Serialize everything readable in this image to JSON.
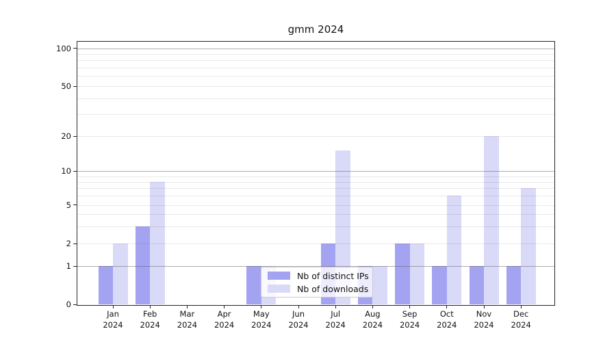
{
  "chart_data": {
    "type": "bar",
    "title": "gmm 2024",
    "xlabel": "",
    "ylabel": "",
    "categories": [
      "Jan",
      "Feb",
      "Mar",
      "Apr",
      "May",
      "Jun",
      "Jul",
      "Aug",
      "Sep",
      "Oct",
      "Nov",
      "Dec"
    ],
    "x_tick_line2": "2024",
    "series": [
      {
        "name": "Nb of distinct IPs",
        "color": "#a3a3f2",
        "values": [
          1,
          3,
          0,
          0,
          1,
          0,
          2,
          1,
          2,
          1,
          1,
          1
        ]
      },
      {
        "name": "Nb of downloads",
        "color": "#d9d9f8",
        "values": [
          2,
          8,
          0,
          0,
          1,
          0,
          15,
          1,
          2,
          6,
          20,
          7
        ]
      }
    ],
    "y_scale": "log-like with zero baseline",
    "ylim": [
      0,
      100
    ],
    "y_tick_labels": [
      0,
      1,
      2,
      5,
      10,
      20,
      50,
      100
    ],
    "y_major_gridlines": [
      1,
      10,
      100
    ],
    "y_minor_gridlines": [
      2,
      3,
      4,
      5,
      6,
      7,
      8,
      9,
      20,
      30,
      40,
      50,
      60,
      70,
      80,
      90
    ],
    "grid": true,
    "legend_position": "lower center"
  },
  "colors": {
    "bar_distinct_ips": "#a3a3f2",
    "bar_downloads": "#d9d9f8",
    "spine": "#222222",
    "major_gridline": "#b3b3b3",
    "minor_gridline": "#e8e8e8",
    "legend_border": "#cccccc",
    "text": "#111111"
  }
}
